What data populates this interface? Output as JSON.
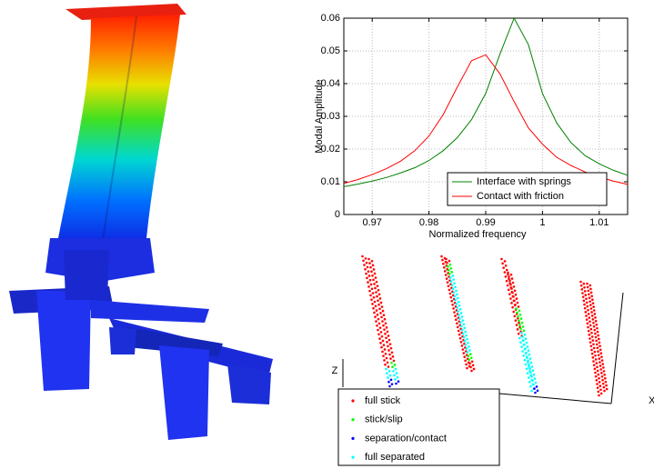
{
  "chart_data": [
    {
      "type": "line",
      "xlabel": "Normalized frequency",
      "ylabel": "Modal Amplitude",
      "x": [
        0.965,
        0.9675,
        0.97,
        0.9725,
        0.975,
        0.9775,
        0.98,
        0.9825,
        0.985,
        0.9875,
        0.99,
        0.9925,
        0.995,
        0.9975,
        1.0,
        1.0025,
        1.005,
        1.0075,
        1.01,
        1.0125,
        1.015
      ],
      "series": [
        {
          "name": "Interface with springs",
          "color": "#008000",
          "values": [
            0.0085,
            0.0093,
            0.0102,
            0.0113,
            0.0127,
            0.0143,
            0.0165,
            0.0195,
            0.0235,
            0.029,
            0.037,
            0.049,
            0.06,
            0.052,
            0.037,
            0.028,
            0.022,
            0.018,
            0.0155,
            0.0135,
            0.012
          ]
        },
        {
          "name": "Contact with friction",
          "color": "#ff0000",
          "values": [
            0.0095,
            0.0107,
            0.0122,
            0.014,
            0.0163,
            0.0195,
            0.024,
            0.0305,
            0.039,
            0.047,
            0.0488,
            0.043,
            0.0345,
            0.0265,
            0.0215,
            0.0175,
            0.015,
            0.013,
            0.0115,
            0.0102,
            0.0092
          ]
        }
      ],
      "xlim": [
        0.965,
        1.015
      ],
      "xticks": [
        0.97,
        0.98,
        0.99,
        1,
        1.01
      ],
      "ylim": [
        0,
        0.06
      ],
      "yticks": [
        0,
        0.01,
        0.02,
        0.03,
        0.04,
        0.05,
        0.06
      ],
      "grid": true,
      "legend": "lower right"
    }
  ],
  "contact_plot": {
    "z_label": "Z",
    "x_label": "X",
    "legend": [
      {
        "name": "full stick",
        "color": "#ff0000"
      },
      {
        "name": "stick/slip",
        "color": "#00ff00"
      },
      {
        "name": "separation/contact",
        "color": "#0000ff"
      },
      {
        "name": "full separated",
        "color": "#00ffff"
      }
    ]
  }
}
